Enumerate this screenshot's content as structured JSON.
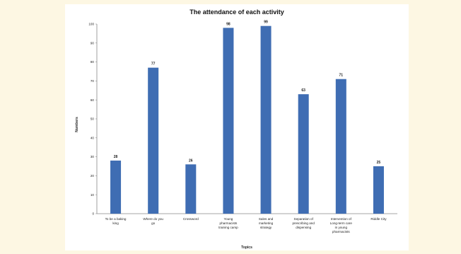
{
  "chart_data": {
    "type": "bar",
    "title": "The attendance of each activity",
    "xlabel": "Topics",
    "ylabel": "Numbers",
    "ylim": [
      0,
      100
    ],
    "yticks": [
      0,
      10,
      20,
      30,
      40,
      50,
      60,
      70,
      80,
      90,
      100
    ],
    "grid": false,
    "categories": [
      [
        "To be a baking",
        "king"
      ],
      [
        "Where do you",
        "go"
      ],
      [
        "Crossword"
      ],
      [
        "Young",
        "pharmacists",
        "training camp"
      ],
      [
        "Sales and",
        "marketing",
        "strategy"
      ],
      [
        "Separation of",
        "prescribing and",
        "dispensing"
      ],
      [
        "Intervention of",
        "Long-term care",
        "in young",
        "pharmacists"
      ],
      [
        "Riddle City"
      ]
    ],
    "values": [
      28,
      77,
      26,
      98,
      99,
      63,
      71,
      25
    ],
    "bar_color": "#3f6db3"
  }
}
